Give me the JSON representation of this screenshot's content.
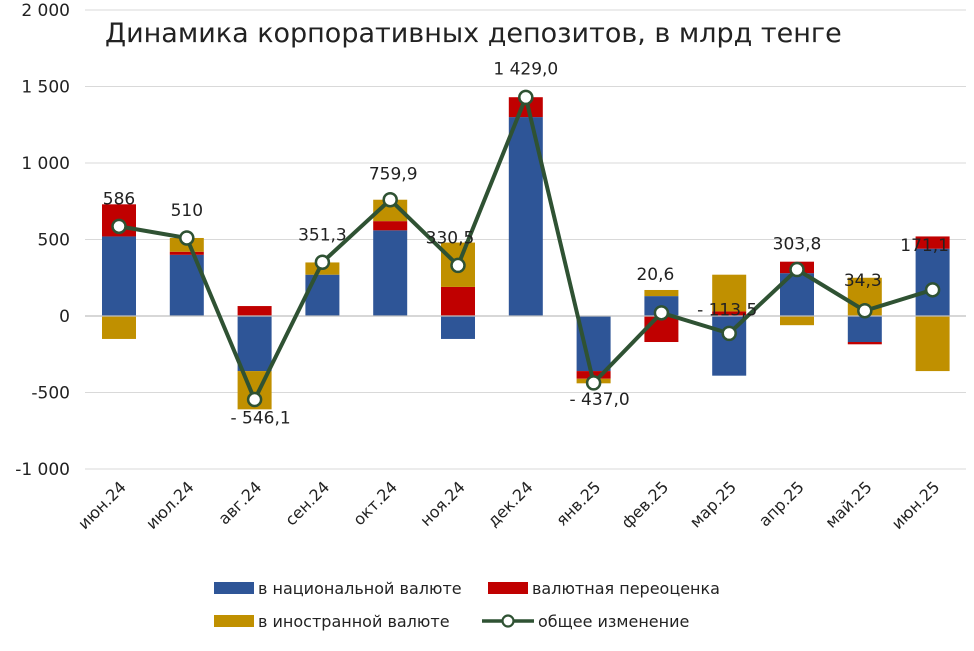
{
  "chart_data": {
    "type": "bar",
    "title": "Динамика корпоративных депозитов, в млрд тенге",
    "categories": [
      "июн.24",
      "июл.24",
      "авг.24",
      "сен.24",
      "окт.24",
      "ноя.24",
      "дек.24",
      "янв.25",
      "фев.25",
      "мар.25",
      "апр.25",
      "май.25",
      "июн.25"
    ],
    "y_ticks": [
      "2 000",
      "1 500",
      "1 000",
      "500",
      "0",
      "-500",
      "-1 000"
    ],
    "ylim": [
      -1000,
      2000
    ],
    "grid": true,
    "stacked": true,
    "legend_position": "bottom",
    "series": [
      {
        "name": "в национальной валюте",
        "color": "#2E5597",
        "values": [
          520,
          400,
          -360,
          270,
          560,
          -150,
          1300,
          -360,
          130,
          -390,
          280,
          -170,
          440
        ]
      },
      {
        "name": "валютная переоценка",
        "color": "#C00000",
        "values": [
          210,
          20,
          65,
          0,
          60,
          190,
          130,
          -50,
          -170,
          30,
          75,
          -15,
          80
        ]
      },
      {
        "name": "в иностранной валюте",
        "color": "#C09000",
        "values": [
          -150,
          90,
          -250,
          80,
          140,
          290,
          0,
          -30,
          40,
          240,
          -60,
          250,
          -360
        ]
      }
    ],
    "line": {
      "name": "общее изменение",
      "color": "#2F5233",
      "values": [
        586,
        510,
        -546.1,
        351.3,
        759.9,
        330.5,
        1429.0,
        -437.0,
        20.6,
        -113.5,
        303.8,
        34.3,
        171.1
      ],
      "labels": [
        "586",
        "510",
        "- 546,1",
        "351,3",
        "759,9",
        "330,5",
        "1 429,0",
        "- 437,0",
        "20,6",
        "- 113,5",
        "303,8",
        "34,3",
        "171,1"
      ]
    }
  }
}
